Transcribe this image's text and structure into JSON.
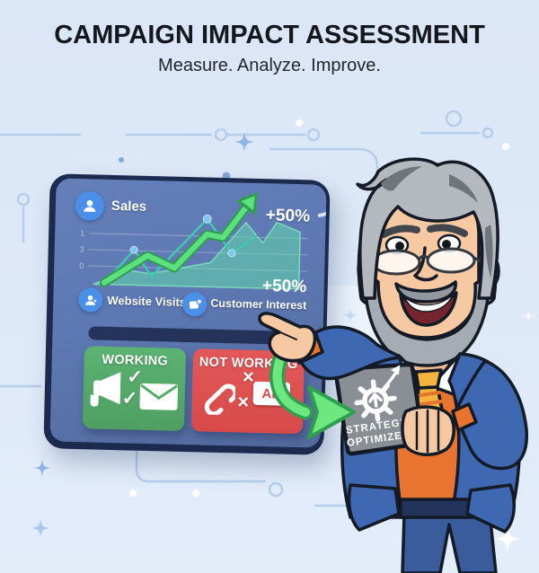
{
  "header": {
    "title": "CAMPAIGN IMPACT ASSESSMENT",
    "subtitle": "Measure. Analyze. Improve."
  },
  "dashboard": {
    "sales_label": "Sales",
    "metrics": [
      {
        "label": "Website Visits"
      },
      {
        "label": "Customer Interest"
      }
    ],
    "working_card": {
      "title": "WORKING"
    },
    "not_working_card": {
      "title": "NOT WORKING",
      "ad_label": "AD"
    }
  },
  "tablet": {
    "line1": "STRATEGY",
    "line2": "OPTIMIZED"
  },
  "icons": {
    "check": "✓",
    "cross": "✕"
  },
  "colors": {
    "background": "#dce7f6",
    "panel_bezel": "#1d2a4f",
    "panel_screen": "#5d78b2",
    "icon_blue": "#4a90e8",
    "growth_green": "#5ce17e",
    "growth_green_dark": "#2f9e4f",
    "area_teal": "#56cfa0",
    "trend_teal": "#3ec9ad",
    "marker_blue": "#7fc4f2",
    "working_green": "#55ab6a",
    "not_working_red": "#df5252",
    "tablet_gray": "#8a8e95",
    "suit_blue": "#3e68b2",
    "vest_orange": "#e8742f",
    "tie_yellow": "#f6b43c",
    "skin": "#f7c9a2",
    "hair_gray": "#b4b9bf"
  },
  "chart_data": {
    "type": "line",
    "title": "Sales",
    "xlabel": "",
    "ylabel": "",
    "yticks": [
      "1",
      "3",
      "0"
    ],
    "grid": true,
    "annotations": [
      "+50%",
      "+50%"
    ],
    "series": [
      {
        "name": "growth",
        "style": "thick-green-arrow-line",
        "points": [
          [
            32,
            106
          ],
          [
            79,
            75
          ],
          [
            109,
            88
          ],
          [
            144,
            50
          ],
          [
            162,
            53
          ],
          [
            191,
            13
          ]
        ]
      },
      {
        "name": "trend",
        "style": "thin-teal-line-with-dots",
        "points": [
          [
            34,
            105
          ],
          [
            64,
            69
          ],
          [
            84,
            98
          ],
          [
            144,
            33
          ],
          [
            172,
            70
          ],
          [
            200,
            50
          ]
        ],
        "markers": [
          [
            64,
            69
          ],
          [
            144,
            33
          ],
          [
            172,
            70
          ]
        ]
      },
      {
        "name": "area",
        "style": "filled-teal-area",
        "points": [
          [
            20,
            108
          ],
          [
            60,
            92
          ],
          [
            82,
            95
          ],
          [
            116,
            88
          ],
          [
            149,
            81
          ],
          [
            187,
            36
          ],
          [
            206,
            58
          ],
          [
            221,
            35
          ],
          [
            247,
            45
          ],
          [
            247,
            108
          ]
        ]
      }
    ],
    "note": "decorative dashboard chart; y-axis tick glyphs read 1, 3, 0"
  }
}
